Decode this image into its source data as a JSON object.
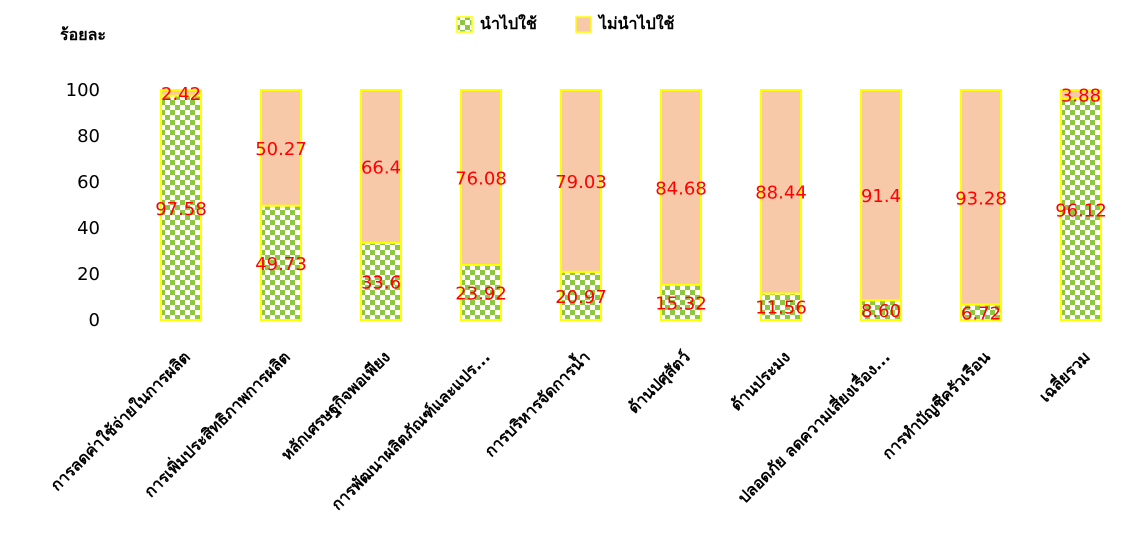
{
  "chart_data": {
    "type": "bar",
    "stacked": true,
    "ylabel": "ร้อยละ",
    "ylim": [
      0,
      100
    ],
    "yticks": [
      0,
      20,
      40,
      60,
      80,
      100
    ],
    "grid": false,
    "legend_position": "top",
    "categories": [
      "การลดค่าใช้จ่ายในการผลิต",
      "การเพิ่มประสิทธิภาพการผลิต",
      "หลักเศรษฐกิจพอเพียง",
      "การพัฒนาผลิตภัณฑ์และแปร...",
      "การบริหารจัดการน้ำ",
      "ด้านปศุสัตว์",
      "ด้านประมง",
      "ปลอดภัย ลดความเสี่ยงเรื่อง...",
      "การทำบัญชีครัวเรือน",
      "เฉลี่ยรวม"
    ],
    "series": [
      {
        "name": "นำไปใช้",
        "color": "#8dc63f",
        "pattern": "checker",
        "values": [
          97.58,
          49.73,
          33.6,
          23.92,
          20.97,
          15.32,
          11.56,
          8.6,
          6.72,
          96.12
        ],
        "labels": [
          "97.58",
          "49.73",
          "33.6",
          "23.92",
          "20.97",
          "15.32",
          "11.56",
          "8.60",
          "6.72",
          "96.12"
        ]
      },
      {
        "name": "ไม่นำไปใช้",
        "color": "#f8c9a9",
        "values": [
          2.42,
          50.27,
          66.4,
          76.08,
          79.03,
          84.68,
          88.44,
          91.4,
          93.28,
          3.88
        ],
        "labels": [
          "2.42",
          "50.27",
          "66.4",
          "76.08",
          "79.03",
          "84.68",
          "88.44",
          "91.4",
          "93.28",
          "3.88"
        ]
      }
    ],
    "bar_outline_color": "#ffff00",
    "data_label_color": "#ff0000"
  }
}
